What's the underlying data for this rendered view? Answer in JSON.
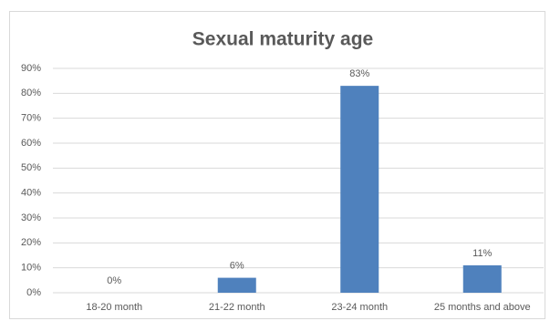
{
  "chart_data": {
    "type": "bar",
    "title": "Sexual maturity age",
    "categories": [
      "18-20 month",
      "21-22 month",
      "23-24 month",
      "25 months and above"
    ],
    "values": [
      0,
      6,
      83,
      11
    ],
    "value_labels": [
      "0%",
      "6%",
      "83%",
      "11%"
    ],
    "color": "#4f81bd",
    "ylim": [
      0,
      90
    ],
    "yticks": [
      {
        "value": 0,
        "label": "0%"
      },
      {
        "value": 10,
        "label": "10%"
      },
      {
        "value": 20,
        "label": "20%"
      },
      {
        "value": 30,
        "label": "30%"
      },
      {
        "value": 40,
        "label": "40%"
      },
      {
        "value": 50,
        "label": "50%"
      },
      {
        "value": 60,
        "label": "60%"
      },
      {
        "value": 70,
        "label": "70%"
      },
      {
        "value": 80,
        "label": "80%"
      },
      {
        "value": 90,
        "label": "90%"
      }
    ],
    "grid": true
  }
}
